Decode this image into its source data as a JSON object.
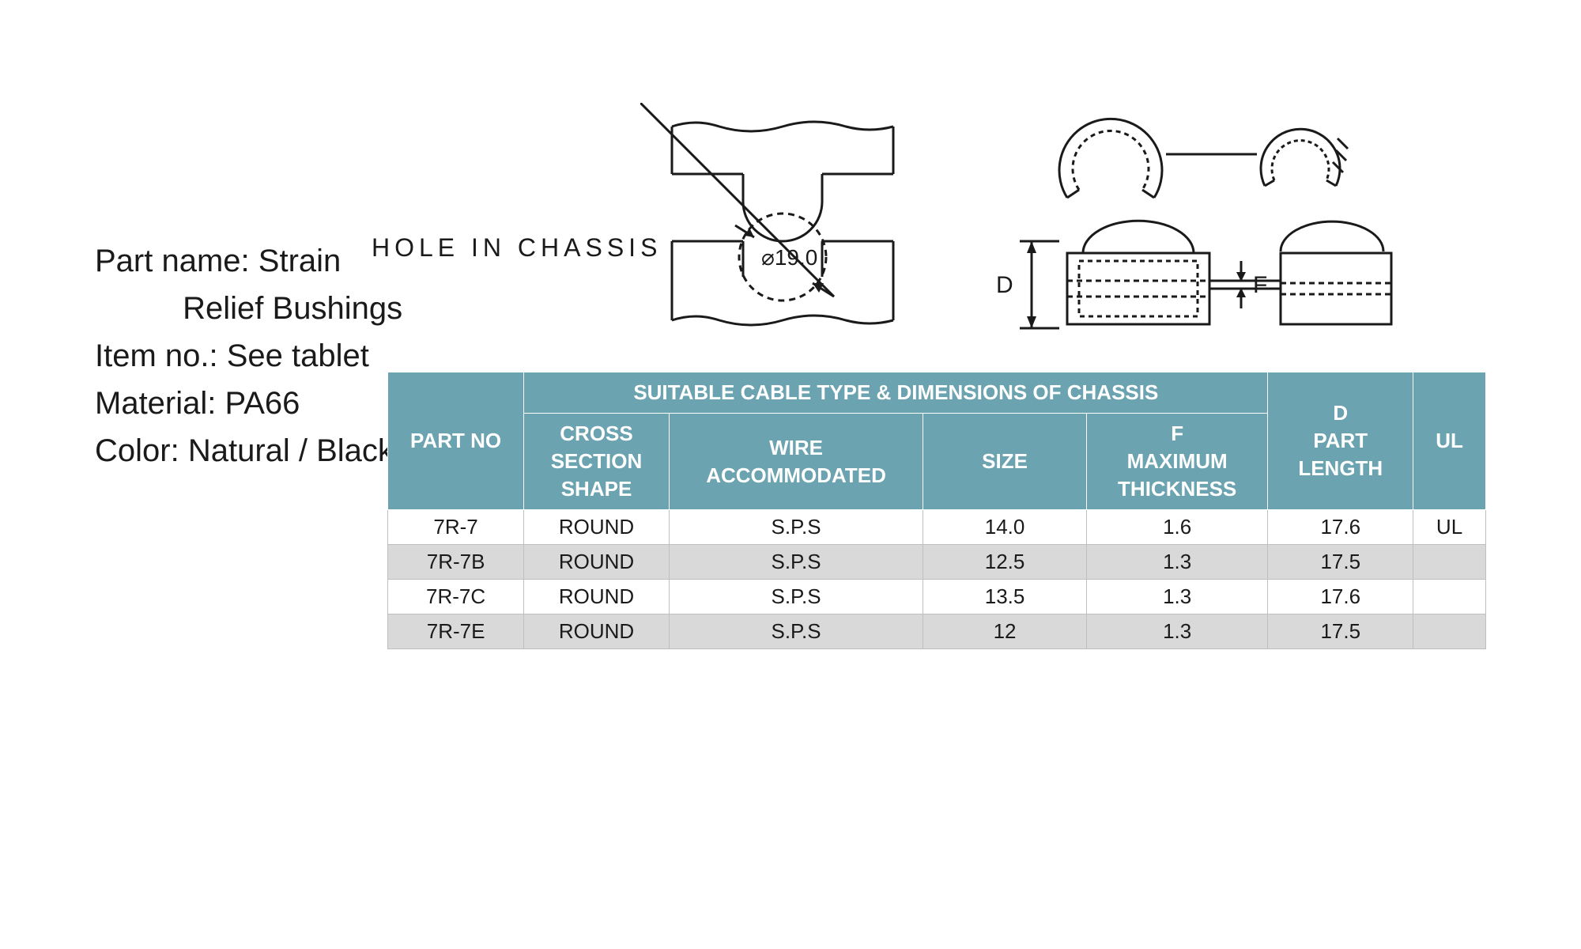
{
  "info": {
    "part_name_label": "Part name:",
    "part_name_line1": "Strain",
    "part_name_line2": "Relief Bushings",
    "item_no_label": "Item no.:",
    "item_no_value": "See tablet",
    "material_label": "Material:",
    "material_value": "PA66",
    "color_label": "Color:",
    "color_value": "Natural / Black"
  },
  "diagram": {
    "hole_label": "HOLE  IN  CHASSIS",
    "diameter_symbol": "⌀19.0",
    "dim_D": "D",
    "dim_F": "F",
    "stroke": "#1a1a1a",
    "stroke_width": 2
  },
  "table": {
    "header_bg": "#6ba3b0",
    "header_fg": "#ffffff",
    "row_even_bg": "#ffffff",
    "row_odd_bg": "#d9d9d9",
    "border_color": "#bfbfbf",
    "columns": {
      "part_no": "PART NO",
      "group": "SUITABLE CABLE TYPE & DIMENSIONS OF CHASSIS",
      "cross": "CROSS SECTION SHAPE",
      "wire": "WIRE ACCOMMODATED",
      "size": "SIZE",
      "f": "F MAXIMUM THICKNESS",
      "d": "D PART LENGTH",
      "ul": "UL"
    },
    "rows": [
      {
        "part_no": "7R-7",
        "cross": "ROUND",
        "wire": "S.P.S",
        "size": "14.0",
        "f": "1.6",
        "d": "17.6",
        "ul": "UL"
      },
      {
        "part_no": "7R-7B",
        "cross": "ROUND",
        "wire": "S.P.S",
        "size": "12.5",
        "f": "1.3",
        "d": "17.5",
        "ul": ""
      },
      {
        "part_no": "7R-7C",
        "cross": "ROUND",
        "wire": "S.P.S",
        "size": "13.5",
        "f": "1.3",
        "d": "17.6",
        "ul": ""
      },
      {
        "part_no": "7R-7E",
        "cross": "ROUND",
        "wire": "S.P.S",
        "size": "12",
        "f": "1.3",
        "d": "17.5",
        "ul": ""
      }
    ]
  }
}
